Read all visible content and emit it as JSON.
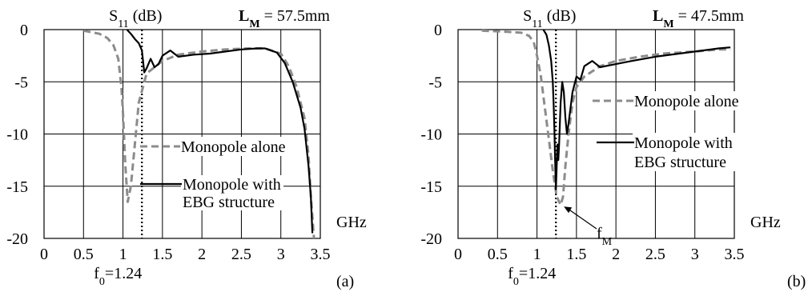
{
  "chart_data": [
    {
      "type": "line",
      "title": "S11 (dB)",
      "title_main": "S",
      "title_sub": "11",
      "title_unit": "(dB)",
      "param_sym": "L",
      "param_sub": "M",
      "param_val": "= 57.5mm",
      "xlabel": "GHz",
      "ylabel": "",
      "xlim": [
        0,
        3.5
      ],
      "ylim": [
        -20,
        0
      ],
      "x_ticks": [
        "0",
        "0.5",
        "1",
        "1.5",
        "2",
        "2.5",
        "3",
        "3.5"
      ],
      "y_ticks": [
        "0",
        "-5",
        "-10",
        "-15",
        "-20"
      ],
      "grid": true,
      "f0_label": "f0=1.24",
      "f0_main": "f",
      "f0_sub": "0",
      "f0_val": "=1.24",
      "f0_x": 1.24,
      "panel_label": "(a)",
      "legend": [
        {
          "text": "Monopole alone",
          "style": "dashed"
        },
        {
          "text": "Monopole with",
          "text2": "EBG structure",
          "style": "solid"
        }
      ],
      "series": [
        {
          "name": "Monopole alone",
          "style": "dashed",
          "color": "#8c8c8c",
          "x": [
            0.5,
            0.7,
            0.8,
            0.88,
            0.94,
            0.98,
            1.0,
            1.03,
            1.06,
            1.1,
            1.15,
            1.2,
            1.3,
            1.5,
            1.7,
            2.0,
            2.3,
            2.6,
            2.8,
            3.0,
            3.1,
            3.2,
            3.3,
            3.35,
            3.38,
            3.42
          ],
          "y": [
            -0.1,
            -0.4,
            -0.8,
            -1.5,
            -2.8,
            -5.5,
            -8,
            -13,
            -16.5,
            -15,
            -11,
            -7,
            -4.2,
            -3,
            -2.4,
            -2.1,
            -1.9,
            -1.8,
            -1.8,
            -2.3,
            -3.5,
            -5.5,
            -8.5,
            -12,
            -16,
            -20
          ]
        },
        {
          "name": "Monopole with EBG structure",
          "style": "solid",
          "color": "#000000",
          "x": [
            1.05,
            1.1,
            1.15,
            1.2,
            1.24,
            1.27,
            1.3,
            1.35,
            1.4,
            1.45,
            1.5,
            1.6,
            1.7,
            1.9,
            2.1,
            2.3,
            2.5,
            2.7,
            2.8,
            2.95,
            3.05,
            3.15,
            3.25,
            3.3,
            3.35,
            3.38,
            3.4
          ],
          "y": [
            0,
            -0.4,
            -0.9,
            -1.3,
            -2,
            -4.1,
            -3.7,
            -2.8,
            -3.6,
            -3.3,
            -2.5,
            -2,
            -2.6,
            -2.4,
            -2.3,
            -2.1,
            -1.9,
            -1.8,
            -1.8,
            -2.2,
            -3.2,
            -5,
            -7.5,
            -9.5,
            -13,
            -16,
            -19.5
          ]
        }
      ]
    },
    {
      "type": "line",
      "title": "S11 (dB)",
      "title_main": "S",
      "title_sub": "11",
      "title_unit": "(dB)",
      "param_sym": "L",
      "param_sub": "M",
      "param_val": "= 47.5mm",
      "xlabel": "GHz",
      "ylabel": "",
      "xlim": [
        0,
        3.5
      ],
      "ylim": [
        -20,
        0
      ],
      "x_ticks": [
        "0",
        "0.5",
        "1",
        "1.5",
        "2",
        "2.5",
        "3",
        "3.5"
      ],
      "y_ticks": [
        "0",
        "-5",
        "-10",
        "-15",
        "-20"
      ],
      "grid": true,
      "f0_label": "f0=1.24",
      "f0_main": "f",
      "f0_sub": "0",
      "f0_val": "=1.24",
      "f0_x": 1.24,
      "fm_label": "fM",
      "fm_main": "f",
      "fm_sub": "M",
      "fm_x": 1.32,
      "fm_y": -16.8,
      "panel_label": "(b)",
      "legend": [
        {
          "text": "Monopole alone",
          "style": "dashed"
        },
        {
          "text": "Monopole with",
          "text2": "EBG structure",
          "style": "solid"
        }
      ],
      "series": [
        {
          "name": "Monopole alone",
          "style": "dashed",
          "color": "#8c8c8c",
          "x": [
            0.3,
            0.6,
            0.8,
            0.9,
            0.96,
            1.0,
            1.05,
            1.1,
            1.15,
            1.2,
            1.25,
            1.3,
            1.33,
            1.36,
            1.4,
            1.45,
            1.5,
            1.6,
            1.8,
            2.0,
            2.3,
            2.6,
            3.0,
            3.3,
            3.45
          ],
          "y": [
            -0.1,
            -0.2,
            -0.3,
            -0.6,
            -1.2,
            -2.5,
            -4.5,
            -7.5,
            -10.5,
            -13.5,
            -16,
            -16.8,
            -16,
            -13,
            -10,
            -7,
            -5.5,
            -4.5,
            -3.5,
            -3,
            -2.6,
            -2.3,
            -2.1,
            -1.9,
            -1.9
          ]
        },
        {
          "name": "Monopole with EBG structure",
          "style": "solid",
          "color": "#000000",
          "x": [
            1.08,
            1.12,
            1.15,
            1.18,
            1.2,
            1.21,
            1.22,
            1.23,
            1.24,
            1.25,
            1.26,
            1.27,
            1.28,
            1.3,
            1.32,
            1.34,
            1.36,
            1.38,
            1.4,
            1.45,
            1.5,
            1.55,
            1.6,
            1.7,
            1.8,
            2.0,
            2.2,
            2.5,
            2.8,
            3.1,
            3.3,
            3.45
          ],
          "y": [
            0,
            -0.5,
            -1.5,
            -3,
            -5,
            -7,
            -9.5,
            -12.5,
            -15.3,
            -13,
            -11,
            -12.5,
            -11,
            -7,
            -5,
            -6,
            -8.5,
            -10,
            -9,
            -6,
            -4.5,
            -4.8,
            -3.5,
            -3,
            -3.6,
            -3.3,
            -3,
            -2.6,
            -2.3,
            -2,
            -1.8,
            -1.7
          ]
        }
      ]
    }
  ]
}
